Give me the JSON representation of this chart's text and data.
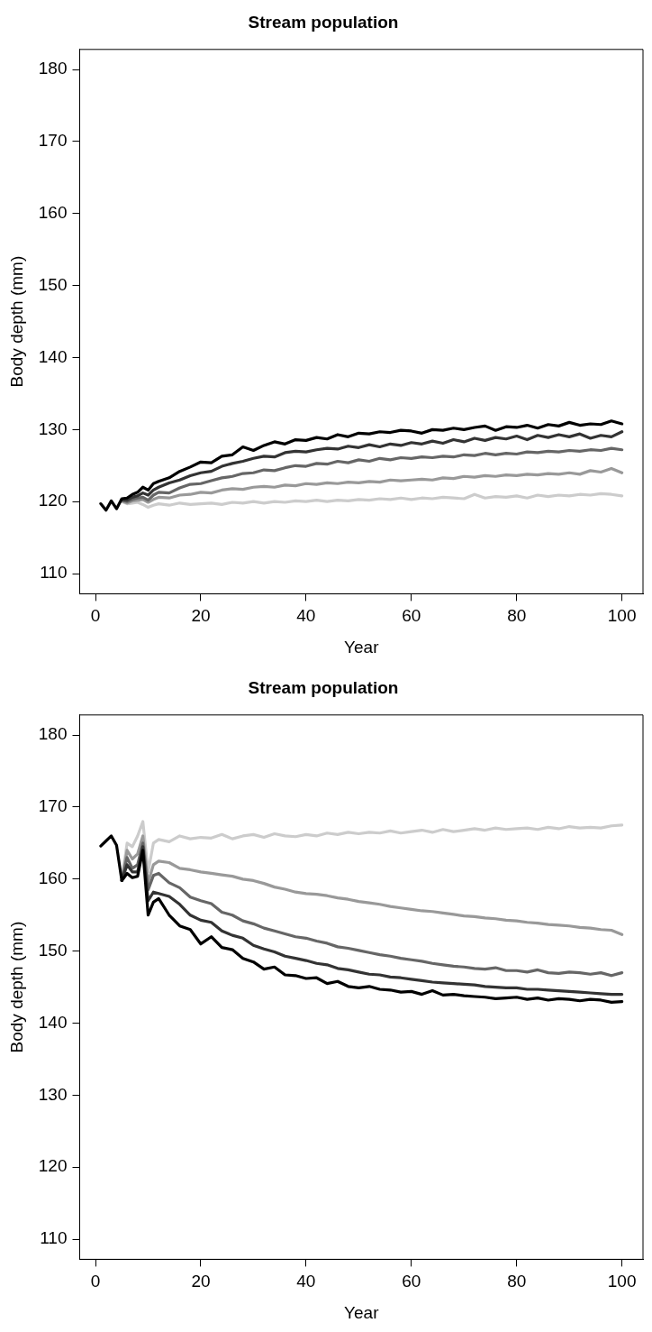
{
  "chart_data": [
    {
      "type": "line",
      "title": "Stream population",
      "xlabel": "Year",
      "ylabel": "Body depth (mm)",
      "x": [
        1,
        2,
        3,
        4,
        5,
        6,
        7,
        8,
        9,
        10,
        11,
        12,
        14,
        16,
        18,
        20,
        22,
        24,
        26,
        28,
        30,
        32,
        34,
        36,
        38,
        40,
        42,
        44,
        46,
        48,
        50,
        52,
        54,
        56,
        58,
        60,
        62,
        64,
        66,
        68,
        70,
        72,
        74,
        76,
        78,
        80,
        82,
        84,
        86,
        88,
        90,
        92,
        94,
        96,
        98,
        100
      ],
      "xlim": [
        -3,
        104
      ],
      "ylim": [
        107.2,
        182.8
      ],
      "xticks": [
        0,
        20,
        40,
        60,
        80,
        100
      ],
      "yticks": [
        110,
        120,
        130,
        140,
        150,
        160,
        170,
        180
      ],
      "grid": false,
      "legend": false,
      "marker": "none",
      "line_style": "solid",
      "series": [
        {
          "color": "#cccccc",
          "values": [
            null,
            null,
            null,
            null,
            120.0,
            119.7,
            119.8,
            119.9,
            119.6,
            119.2,
            119.5,
            119.7,
            119.5,
            119.8,
            119.6,
            119.7,
            119.8,
            119.6,
            119.9,
            119.8,
            120.0,
            119.8,
            120.0,
            119.9,
            120.1,
            120.0,
            120.2,
            120.0,
            120.2,
            120.1,
            120.3,
            120.2,
            120.4,
            120.3,
            120.5,
            120.3,
            120.5,
            120.4,
            120.6,
            120.5,
            120.4,
            121.0,
            120.5,
            120.7,
            120.6,
            120.8,
            120.5,
            120.9,
            120.7,
            120.9,
            120.8,
            121.0,
            120.9,
            121.1,
            121.0,
            120.8
          ]
        },
        {
          "color": "#999999",
          "values": [
            null,
            null,
            null,
            null,
            120.1,
            119.8,
            120.1,
            120.2,
            120.3,
            119.9,
            120.3,
            120.6,
            120.5,
            120.9,
            121.0,
            121.3,
            121.2,
            121.6,
            121.8,
            121.7,
            122.0,
            122.1,
            122.0,
            122.3,
            122.2,
            122.5,
            122.4,
            122.6,
            122.5,
            122.7,
            122.6,
            122.8,
            122.7,
            123.0,
            122.9,
            123.0,
            123.1,
            123.0,
            123.3,
            123.2,
            123.5,
            123.4,
            123.6,
            123.5,
            123.7,
            123.6,
            123.8,
            123.7,
            123.9,
            123.8,
            124.0,
            123.8,
            124.3,
            124.1,
            124.6,
            124.0
          ]
        },
        {
          "color": "#666666",
          "values": [
            null,
            null,
            null,
            null,
            120.2,
            120.0,
            120.3,
            120.5,
            120.6,
            120.2,
            120.9,
            121.3,
            121.2,
            121.9,
            122.4,
            122.5,
            122.9,
            123.3,
            123.5,
            123.9,
            124.0,
            124.4,
            124.3,
            124.7,
            125.0,
            124.9,
            125.3,
            125.2,
            125.6,
            125.4,
            125.8,
            125.6,
            126.0,
            125.8,
            126.1,
            126.0,
            126.2,
            126.1,
            126.3,
            126.2,
            126.5,
            126.4,
            126.7,
            126.5,
            126.7,
            126.6,
            126.9,
            126.8,
            127.0,
            126.9,
            127.1,
            127.0,
            127.2,
            127.1,
            127.4,
            127.2
          ]
        },
        {
          "color": "#333333",
          "values": [
            null,
            null,
            null,
            null,
            120.3,
            120.2,
            120.6,
            120.8,
            121.2,
            120.9,
            121.6,
            122.0,
            122.6,
            123.0,
            123.6,
            124.0,
            124.2,
            124.9,
            125.3,
            125.6,
            126.0,
            126.3,
            126.2,
            126.8,
            127.0,
            126.9,
            127.2,
            127.4,
            127.3,
            127.7,
            127.5,
            127.9,
            127.6,
            128.0,
            127.8,
            128.2,
            128.0,
            128.4,
            128.1,
            128.6,
            128.3,
            128.8,
            128.5,
            128.9,
            128.7,
            129.1,
            128.6,
            129.2,
            128.9,
            129.3,
            129.0,
            129.4,
            128.8,
            129.2,
            129.0,
            129.7
          ]
        },
        {
          "color": "#000000",
          "values": [
            119.7,
            118.8,
            120.1,
            119.0,
            120.4,
            120.5,
            121.0,
            121.3,
            122.0,
            121.6,
            122.5,
            122.8,
            123.3,
            124.2,
            124.8,
            125.5,
            125.4,
            126.3,
            126.5,
            127.6,
            127.1,
            127.8,
            128.3,
            128.0,
            128.6,
            128.5,
            128.9,
            128.7,
            129.3,
            129.0,
            129.5,
            129.4,
            129.7,
            129.6,
            129.9,
            129.8,
            129.5,
            130.0,
            129.9,
            130.2,
            130.0,
            130.3,
            130.5,
            129.9,
            130.4,
            130.3,
            130.6,
            130.2,
            130.7,
            130.5,
            131.0,
            130.6,
            130.8,
            130.7,
            131.2,
            130.8
          ]
        }
      ]
    },
    {
      "type": "line",
      "title": "Stream population",
      "xlabel": "Year",
      "ylabel": "Body depth (mm)",
      "x": [
        1,
        2,
        3,
        4,
        5,
        6,
        7,
        8,
        9,
        10,
        11,
        12,
        14,
        16,
        18,
        20,
        22,
        24,
        26,
        28,
        30,
        32,
        34,
        36,
        38,
        40,
        42,
        44,
        46,
        48,
        50,
        52,
        54,
        56,
        58,
        60,
        62,
        64,
        66,
        68,
        70,
        72,
        74,
        76,
        78,
        80,
        82,
        84,
        86,
        88,
        90,
        92,
        94,
        96,
        98,
        100
      ],
      "xlim": [
        -3,
        104
      ],
      "ylim": [
        107.2,
        182.8
      ],
      "xticks": [
        0,
        20,
        40,
        60,
        80,
        100
      ],
      "yticks": [
        110,
        120,
        130,
        140,
        150,
        160,
        170,
        180
      ],
      "grid": false,
      "legend": false,
      "marker": "none",
      "line_style": "solid",
      "series": [
        {
          "color": "#cccccc",
          "values": [
            null,
            null,
            null,
            null,
            159.8,
            165.0,
            164.5,
            166.0,
            168.0,
            161.0,
            165.0,
            165.5,
            165.2,
            166.0,
            165.6,
            165.8,
            165.7,
            166.2,
            165.6,
            166.0,
            166.2,
            165.8,
            166.3,
            166.0,
            165.9,
            166.2,
            166.0,
            166.4,
            166.2,
            166.5,
            166.3,
            166.5,
            166.4,
            166.7,
            166.4,
            166.6,
            166.8,
            166.5,
            166.9,
            166.6,
            166.8,
            167.0,
            166.8,
            167.1,
            166.9,
            167.0,
            167.1,
            166.9,
            167.2,
            167.0,
            167.3,
            167.1,
            167.2,
            167.1,
            167.4,
            167.5
          ]
        },
        {
          "color": "#999999",
          "values": [
            null,
            null,
            null,
            null,
            159.8,
            164.0,
            162.8,
            163.5,
            166.0,
            159.5,
            162.0,
            162.5,
            162.3,
            161.5,
            161.3,
            161.0,
            160.8,
            160.6,
            160.4,
            160.0,
            159.8,
            159.4,
            158.9,
            158.6,
            158.2,
            158.0,
            157.9,
            157.7,
            157.4,
            157.2,
            156.9,
            156.7,
            156.5,
            156.2,
            156.0,
            155.8,
            155.6,
            155.5,
            155.3,
            155.1,
            154.9,
            154.8,
            154.6,
            154.5,
            154.3,
            154.2,
            154.0,
            153.9,
            153.7,
            153.6,
            153.5,
            153.3,
            153.2,
            153.0,
            152.9,
            152.3
          ]
        },
        {
          "color": "#666666",
          "values": [
            null,
            null,
            null,
            null,
            159.8,
            163.0,
            161.5,
            162.0,
            165.0,
            158.5,
            160.5,
            160.8,
            159.5,
            158.8,
            157.5,
            157.0,
            156.6,
            155.4,
            155.0,
            154.2,
            153.8,
            153.2,
            152.8,
            152.4,
            152.0,
            151.8,
            151.4,
            151.1,
            150.6,
            150.4,
            150.1,
            149.8,
            149.5,
            149.3,
            149.0,
            148.8,
            148.6,
            148.3,
            148.1,
            147.9,
            147.8,
            147.6,
            147.5,
            147.7,
            147.3,
            147.3,
            147.1,
            147.4,
            147.0,
            146.9,
            147.1,
            147.0,
            146.8,
            147.0,
            146.6,
            147.0
          ]
        },
        {
          "color": "#333333",
          "values": [
            null,
            null,
            null,
            null,
            159.8,
            162.0,
            161.0,
            161.0,
            164.5,
            157.0,
            158.2,
            158.0,
            157.6,
            156.5,
            155.0,
            154.3,
            154.0,
            152.8,
            152.2,
            151.8,
            150.8,
            150.3,
            149.9,
            149.3,
            149.0,
            148.7,
            148.3,
            148.1,
            147.6,
            147.4,
            147.1,
            146.8,
            146.7,
            146.4,
            146.3,
            146.1,
            145.9,
            145.7,
            145.6,
            145.5,
            145.4,
            145.3,
            145.1,
            145.0,
            144.9,
            144.9,
            144.7,
            144.7,
            144.6,
            144.5,
            144.4,
            144.3,
            144.2,
            144.1,
            144.0,
            144.0
          ]
        },
        {
          "color": "#000000",
          "values": [
            164.6,
            165.3,
            166.0,
            164.7,
            159.8,
            160.8,
            160.2,
            160.4,
            164.0,
            155.0,
            156.8,
            157.3,
            155.0,
            153.5,
            153.0,
            151.0,
            152.0,
            150.5,
            150.2,
            149.0,
            148.5,
            147.5,
            147.8,
            146.7,
            146.6,
            146.2,
            146.3,
            145.5,
            145.8,
            145.1,
            144.9,
            145.1,
            144.7,
            144.6,
            144.3,
            144.4,
            144.0,
            144.5,
            143.9,
            144.0,
            143.8,
            143.7,
            143.6,
            143.4,
            143.5,
            143.6,
            143.3,
            143.5,
            143.2,
            143.4,
            143.3,
            143.1,
            143.3,
            143.2,
            142.9,
            143.0
          ]
        }
      ]
    }
  ]
}
